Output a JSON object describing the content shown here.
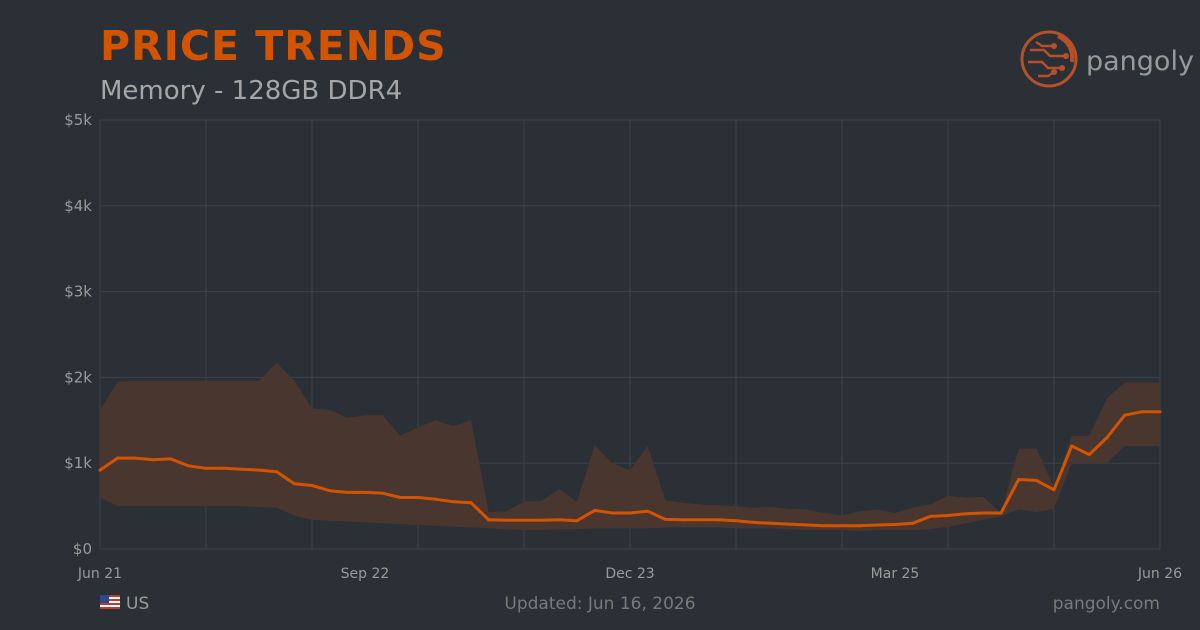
{
  "header": {
    "title": "PRICE TRENDS",
    "subtitle": "Memory - 128GB DDR4",
    "brand": "pangoly"
  },
  "footer": {
    "region": "US",
    "updated": "Updated: Jun 16, 2026",
    "site": "pangoly.com"
  },
  "colors": {
    "accent": "#d35400",
    "band": "#4a372f",
    "background": "#2b2f36",
    "grid": "#3c4048"
  },
  "icons": {
    "brand_logo": "pangoly-circuit-icon",
    "flag": "us-flag-icon"
  },
  "chart_data": {
    "type": "area",
    "title": "",
    "xlabel": "",
    "ylabel": "",
    "ylim": [
      0,
      5000
    ],
    "yticks": [
      0,
      1000,
      2000,
      3000,
      4000,
      5000
    ],
    "ytick_labels": [
      "$0",
      "$1k",
      "$2k",
      "$3k",
      "$4k",
      "$5k"
    ],
    "xlim": [
      "2021-06",
      "2026-06"
    ],
    "xtick_labels": [
      "Jun 21",
      "Sep 22",
      "Dec 23",
      "Mar 25",
      "Jun 26"
    ],
    "xtick_positions": [
      "2021-06",
      "2022-09",
      "2023-12",
      "2025-03",
      "2026-06"
    ],
    "grid": true,
    "series": [
      {
        "name": "",
        "kind": "line",
        "x": [
          "2021-06",
          "2021-07",
          "2021-08",
          "2021-09",
          "2021-10",
          "2021-11",
          "2021-12",
          "2022-01",
          "2022-02",
          "2022-03",
          "2022-04",
          "2022-05",
          "2022-06",
          "2022-07",
          "2022-08",
          "2022-09",
          "2022-10",
          "2022-11",
          "2022-12",
          "2023-01",
          "2023-02",
          "2023-03",
          "2023-04",
          "2023-05",
          "2023-06",
          "2023-07",
          "2023-08",
          "2023-09",
          "2023-10",
          "2023-11",
          "2023-12",
          "2024-01",
          "2024-02",
          "2024-03",
          "2024-04",
          "2024-05",
          "2024-06",
          "2024-07",
          "2024-08",
          "2024-09",
          "2024-10",
          "2024-11",
          "2024-12",
          "2025-01",
          "2025-02",
          "2025-03",
          "2025-04",
          "2025-05",
          "2025-06",
          "2025-07",
          "2025-08",
          "2025-09",
          "2025-10",
          "2025-11",
          "2025-12",
          "2026-01",
          "2026-02",
          "2026-03",
          "2026-04",
          "2026-05",
          "2026-06"
        ],
        "values": [
          920,
          1060,
          1060,
          1040,
          1050,
          970,
          940,
          940,
          930,
          920,
          900,
          760,
          740,
          680,
          660,
          660,
          650,
          600,
          600,
          580,
          550,
          540,
          340,
          335,
          335,
          335,
          340,
          330,
          450,
          420,
          420,
          440,
          345,
          340,
          340,
          340,
          330,
          310,
          300,
          290,
          280,
          270,
          270,
          270,
          280,
          285,
          300,
          380,
          390,
          410,
          420,
          420,
          810,
          800,
          690,
          1200,
          1100,
          1300,
          1560,
          1600,
          1600
        ]
      },
      {
        "name": "",
        "kind": "band-upper",
        "values": [
          1620,
          1950,
          1960,
          1960,
          1960,
          1960,
          1960,
          1960,
          1960,
          1960,
          2170,
          1960,
          1640,
          1620,
          1530,
          1560,
          1560,
          1320,
          1420,
          1500,
          1430,
          1500,
          430,
          440,
          550,
          560,
          700,
          550,
          1210,
          1000,
          920,
          1200,
          570,
          540,
          520,
          510,
          500,
          480,
          490,
          470,
          460,
          420,
          390,
          440,
          460,
          420,
          480,
          520,
          620,
          600,
          610,
          420,
          1170,
          1170,
          720,
          1320,
          1320,
          1760,
          1940,
          1940,
          1940
        ]
      },
      {
        "name": "",
        "kind": "band-lower",
        "values": [
          600,
          500,
          500,
          500,
          500,
          500,
          500,
          500,
          500,
          490,
          480,
          390,
          340,
          330,
          320,
          310,
          300,
          290,
          280,
          270,
          260,
          250,
          240,
          230,
          220,
          220,
          230,
          230,
          240,
          240,
          240,
          240,
          250,
          250,
          250,
          250,
          240,
          240,
          240,
          230,
          220,
          220,
          220,
          210,
          220,
          220,
          220,
          230,
          260,
          300,
          340,
          380,
          460,
          430,
          470,
          1000,
          1000,
          1000,
          1200,
          1200,
          1200
        ]
      }
    ]
  }
}
